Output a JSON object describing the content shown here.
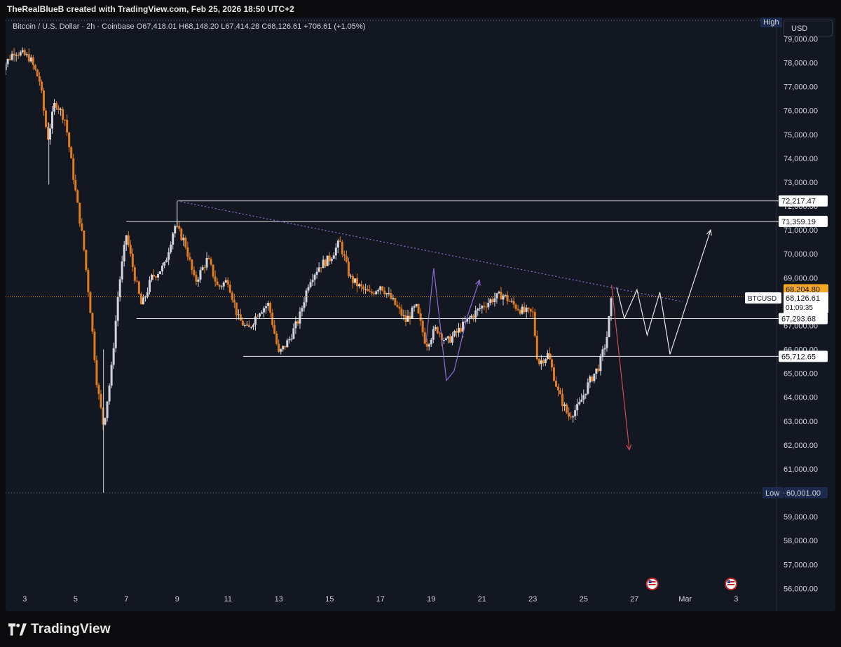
{
  "header": {
    "credit": "TheRealBlueB created with TradingView.com, Feb 25, 2026 18:50 UTC+2"
  },
  "legend": {
    "symbol": "Bitcoin / U.S. Dollar · 2h · Coinbase",
    "o_label": "O",
    "o_value": "67,418.01",
    "h_label": "H",
    "h_value": "68,148.20",
    "l_label": "L",
    "l_value": "67,414.28",
    "c_label": "C",
    "c_value": "68,126.61",
    "change": "+706.61 (+1.05%)"
  },
  "currency": "USD",
  "footer": {
    "brand": "TradingView"
  },
  "colors": {
    "bg": "#131722",
    "up": "#d1d4dc",
    "down": "#e07b1f",
    "level": "#e6e6e6",
    "trend": "#8e6ccf",
    "bearish": "#c94c57",
    "label_blue": "#1c2a4d",
    "price_orange": "#f5a623"
  },
  "chart_data": {
    "type": "candlestick",
    "symbol": "BTCUSD",
    "timeframe": "2h",
    "y_range": [
      55600,
      79600
    ],
    "x_ticks": [
      "3",
      "5",
      "7",
      "9",
      "11",
      "13",
      "15",
      "17",
      "19",
      "21",
      "23",
      "25",
      "27",
      "Mar",
      "3"
    ],
    "y_ticks": [
      "79,000.00",
      "78,000.00",
      "77,000.00",
      "76,000.00",
      "75,000.00",
      "74,000.00",
      "73,000.00",
      "72,000.00",
      "71,000.00",
      "70,000.00",
      "69,000.00",
      "68,000.00",
      "67,000.00",
      "66,000.00",
      "65,000.00",
      "64,000.00",
      "63,000.00",
      "62,000.00",
      "61,000.00",
      "60,000.00",
      "59,000.00",
      "58,000.00",
      "57,000.00",
      "56,000.00"
    ],
    "price_path_day_close": [
      [
        2.0,
        77600
      ],
      [
        2.6,
        78500
      ],
      [
        3.2,
        78200
      ],
      [
        3.6,
        77200
      ],
      [
        3.9,
        74800
      ],
      [
        4.2,
        76400
      ],
      [
        4.6,
        75600
      ],
      [
        5.0,
        72600
      ],
      [
        5.3,
        70500
      ],
      [
        5.6,
        67500
      ],
      [
        5.85,
        64500
      ],
      [
        6.1,
        62800
      ],
      [
        6.4,
        65000
      ],
      [
        6.7,
        68600
      ],
      [
        7.0,
        70800
      ],
      [
        7.3,
        69200
      ],
      [
        7.6,
        67800
      ],
      [
        8.0,
        69000
      ],
      [
        8.5,
        69500
      ],
      [
        8.9,
        71200
      ],
      [
        9.3,
        70500
      ],
      [
        9.7,
        68800
      ],
      [
        10.2,
        69800
      ],
      [
        10.6,
        68600
      ],
      [
        11.0,
        68900
      ],
      [
        11.4,
        67300
      ],
      [
        11.8,
        66800
      ],
      [
        12.2,
        67600
      ],
      [
        12.6,
        67900
      ],
      [
        13.0,
        65800
      ],
      [
        13.4,
        66400
      ],
      [
        13.8,
        67300
      ],
      [
        14.2,
        68900
      ],
      [
        14.6,
        69500
      ],
      [
        15.0,
        69800
      ],
      [
        15.4,
        70500
      ],
      [
        15.8,
        69000
      ],
      [
        16.2,
        68600
      ],
      [
        16.6,
        68300
      ],
      [
        17.0,
        68700
      ],
      [
        17.5,
        68000
      ],
      [
        18.0,
        67200
      ],
      [
        18.4,
        67800
      ],
      [
        18.8,
        66200
      ],
      [
        19.2,
        66900
      ],
      [
        19.6,
        66300
      ],
      [
        20.0,
        66700
      ],
      [
        20.5,
        67300
      ],
      [
        21.0,
        67800
      ],
      [
        21.4,
        68100
      ],
      [
        21.8,
        68300
      ],
      [
        22.2,
        67900
      ],
      [
        22.6,
        67600
      ],
      [
        23.0,
        67500
      ],
      [
        23.2,
        65400
      ],
      [
        23.6,
        65800
      ],
      [
        24.0,
        64200
      ],
      [
        24.4,
        63200
      ],
      [
        24.8,
        63600
      ],
      [
        25.2,
        64600
      ],
      [
        25.6,
        65300
      ],
      [
        25.9,
        66400
      ],
      [
        26.1,
        68126.61
      ]
    ],
    "levels": [
      {
        "price": 72217.47,
        "label": "72,217.47"
      },
      {
        "price": 71359.19,
        "label": "71,359.19"
      },
      {
        "price": 67293.68,
        "label": "67,293.68"
      },
      {
        "price": 65712.65,
        "label": "65,712.65"
      }
    ],
    "high": {
      "label": "High"
    },
    "low": {
      "label": "Low",
      "price": 60001.0,
      "value": "60,001.00"
    },
    "current": {
      "label": "BTCUSD",
      "price": 68126.61,
      "value": "68,126.61",
      "countdown": "01:09:35"
    },
    "bid_price": {
      "price": 68204.8,
      "value": "68,204.80"
    },
    "trendline": {
      "from": [
        9.0,
        72217.47
      ],
      "to": [
        28.9,
        68000
      ]
    },
    "projection_up": [
      [
        26.3,
        68600
      ],
      [
        26.6,
        67300
      ],
      [
        27.1,
        68500
      ],
      [
        27.5,
        66600
      ],
      [
        28.0,
        68400
      ],
      [
        28.4,
        65800
      ],
      [
        30.0,
        71000
      ]
    ],
    "projection_down": [
      [
        26.1,
        68700
      ],
      [
        26.8,
        61800
      ]
    ],
    "purple_wave": [
      [
        18.8,
        66300
      ],
      [
        19.1,
        69400
      ],
      [
        19.6,
        64700
      ],
      [
        19.9,
        65100
      ],
      [
        20.4,
        67300
      ],
      [
        20.9,
        68900
      ]
    ],
    "events_x": [
      27.7,
      30.8
    ]
  }
}
